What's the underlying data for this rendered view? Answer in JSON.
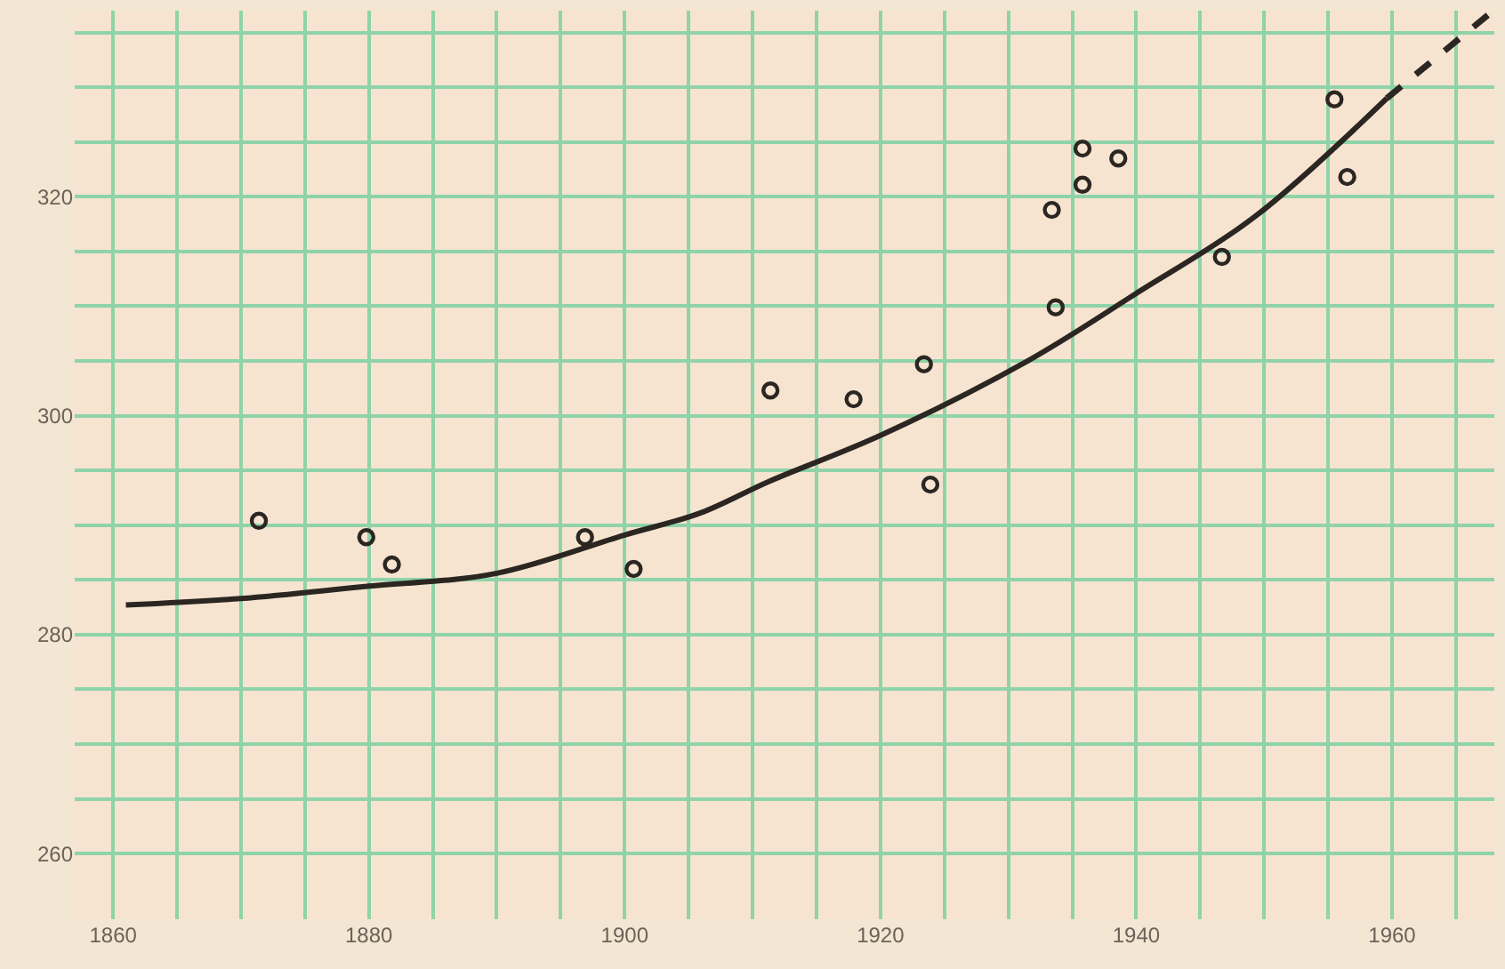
{
  "chart_data": {
    "type": "scatter",
    "xlim": [
      1857,
      1968
    ],
    "ylim": [
      254,
      337
    ],
    "xticks": [
      1860,
      {
        "value": 1865,
        "label": null
      },
      {
        "value": 1870,
        "label": null
      },
      {
        "value": 1875,
        "label": null
      },
      1880,
      {
        "value": 1885,
        "label": null
      },
      {
        "value": 1890,
        "label": null
      },
      {
        "value": 1895,
        "label": null
      },
      1900,
      {
        "value": 1905,
        "label": null
      },
      {
        "value": 1910,
        "label": null
      },
      {
        "value": 1915,
        "label": null
      },
      1920,
      {
        "value": 1925,
        "label": null
      },
      {
        "value": 1930,
        "label": null
      },
      {
        "value": 1935,
        "label": null
      },
      1940,
      {
        "value": 1945,
        "label": null
      },
      {
        "value": 1950,
        "label": null
      },
      {
        "value": 1955,
        "label": null
      },
      1960,
      {
        "value": 1965,
        "label": null
      }
    ],
    "yticks": [
      260,
      {
        "value": 265,
        "label": null
      },
      {
        "value": 270,
        "label": null
      },
      {
        "value": 275,
        "label": null
      },
      280,
      {
        "value": 285,
        "label": null
      },
      {
        "value": 290,
        "label": null
      },
      {
        "value": 295,
        "label": null
      },
      300,
      {
        "value": 305,
        "label": null
      },
      {
        "value": 310,
        "label": null
      },
      {
        "value": 315,
        "label": null
      },
      320,
      {
        "value": 325,
        "label": null
      },
      {
        "value": 330,
        "label": null
      },
      {
        "value": 335,
        "label": null
      }
    ],
    "grid": true,
    "series": [
      {
        "color": "#2b2622",
        "marker": "circle",
        "x": [
          1871.4,
          1879.8,
          1881.8,
          1896.9,
          1900.7,
          1911.4,
          1917.9,
          1923.4,
          1923.9,
          1933.4,
          1933.7,
          1935.8,
          1935.8,
          1938.6,
          1946.7,
          1955.5,
          1956.5
        ],
        "values": [
          290.4,
          288.9,
          286.4,
          288.9,
          286.0,
          302.3,
          301.5,
          304.7,
          293.7,
          318.8,
          309.9,
          324.4,
          321.1,
          323.5,
          314.5,
          328.9,
          321.8
        ]
      },
      {
        "type": "line",
        "color": "#2b2622",
        "marker": "none",
        "line_style": "solid",
        "x": [
          1861,
          1870,
          1879.7,
          1890,
          1900,
          1905.9,
          1911.3,
          1920,
          1931.5,
          1939.9,
          1949.3,
          1959.6
        ],
        "values": [
          282.7,
          283.3,
          284.4,
          285.6,
          289.1,
          291.1,
          294.0,
          298.2,
          305.0,
          311.1,
          318.2,
          329.0
        ]
      },
      {
        "type": "line",
        "color": "#2b2622",
        "marker": "none",
        "line_style": "dashed",
        "x": [
          1959.6,
          1967.5
        ],
        "values": [
          329.0,
          336.6
        ]
      }
    ]
  }
}
